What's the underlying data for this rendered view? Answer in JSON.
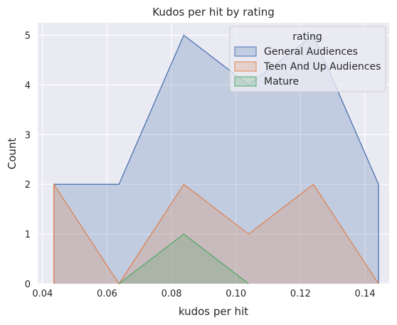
{
  "chart_data": {
    "type": "area",
    "title": "Kudos per hit by rating",
    "xlabel": "kudos per hit",
    "ylabel": "Count",
    "xlim": [
      0.0385,
      0.1475
    ],
    "ylim": [
      0,
      5.25
    ],
    "xticks": [
      0.04,
      0.06,
      0.08,
      0.1,
      0.12,
      0.14
    ],
    "xtick_labels": [
      "0.04",
      "0.06",
      "0.08",
      "0.10",
      "0.12",
      "0.14"
    ],
    "yticks": [
      0,
      1,
      2,
      3,
      4,
      5
    ],
    "ytick_labels": [
      "0",
      "1",
      "2",
      "3",
      "4",
      "5"
    ],
    "grid": true,
    "legend": {
      "title": "rating",
      "position": "top-right"
    },
    "series": [
      {
        "name": "General Audiences",
        "color": "#4c72b0",
        "x": [
          0.0435,
          0.0435,
          0.0637,
          0.0838,
          0.1039,
          0.124,
          0.1442,
          0.1442
        ],
        "y": [
          0,
          2,
          2,
          5,
          4,
          5,
          2,
          0
        ]
      },
      {
        "name": "Teen And Up Audiences",
        "color": "#dd8452",
        "x": [
          0.0435,
          0.0435,
          0.0637,
          0.0838,
          0.1039,
          0.124,
          0.1442
        ],
        "y": [
          0,
          2,
          0,
          2,
          1,
          2,
          0
        ]
      },
      {
        "name": "Mature",
        "color": "#55a868",
        "x": [
          0.0637,
          0.0838,
          0.1039
        ],
        "y": [
          0,
          1,
          0
        ]
      }
    ]
  }
}
